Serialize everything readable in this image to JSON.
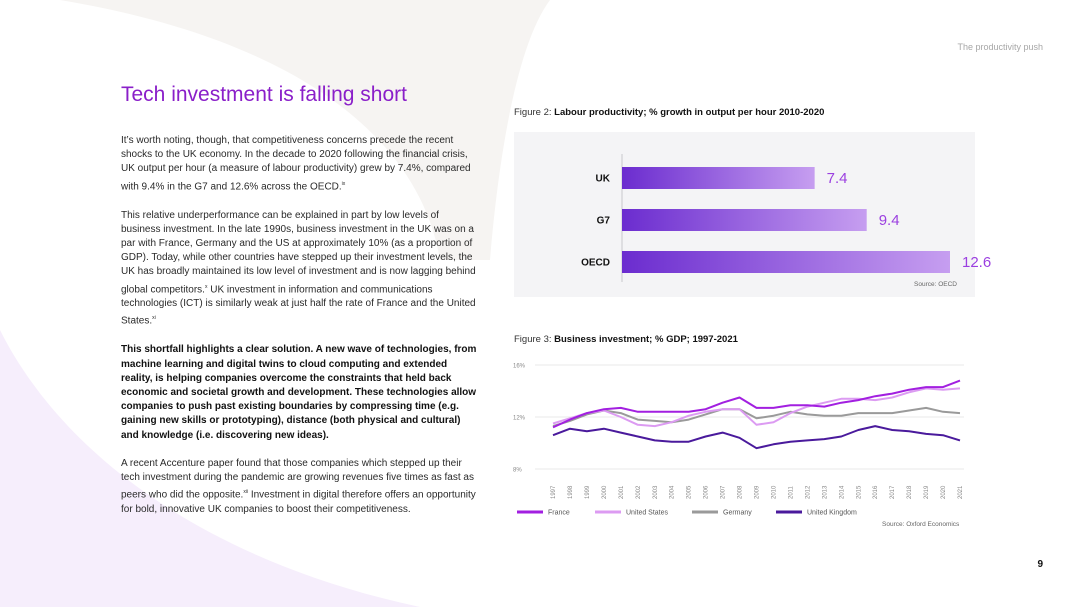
{
  "header": {
    "section": "The productivity push"
  },
  "title": "Tech investment is falling short",
  "paragraphs": {
    "p1": "It’s worth noting, though, that competitiveness concerns precede the recent shocks to the UK economy. In the decade to 2020 following the financial crisis, UK output per hour (a measure of labour productivity) grew by 7.4%, compared with 9.4% in the G7 and 12.6% across the OECD.",
    "p1_ref": "ix",
    "p2": "This relative underperformance can be explained in part by low levels of business investment. In the late 1990s, business investment in the UK was on a par with France, Germany and the US at approximately 10% (as a proportion of GDP). Today, while other countries have stepped up their investment levels, the UK has broadly maintained its low level of investment and is now lagging behind global competitors.",
    "p2_ref1": "x",
    "p2b": " UK investment in information and communications technologies (ICT) is similarly weak at just half the rate of France and the United States.",
    "p2_ref2": "xi",
    "p3": "This shortfall highlights a clear solution. A new wave of technologies, from machine learning and digital twins to cloud computing and extended reality, is helping companies overcome the constraints that held back economic and societal growth and development. These technologies allow companies to push past existing boundaries by compressing time (e.g. gaining new skills or prototyping), distance (both physical and cultural) and knowledge (i.e. discovering new ideas).",
    "p4": "A recent Accenture paper found that those companies which stepped up their tech investment during the pandemic are growing revenues five times as fast as peers who did the opposite.",
    "p4_ref": "xii",
    "p4b": " Investment in digital therefore offers an opportunity for bold, innovative UK companies to boost their competitiveness."
  },
  "figure2": {
    "caption_prefix": "Figure 2: ",
    "caption_bold": "Labour productivity; % growth in output per hour 2010-2020",
    "source": "Source: OECD"
  },
  "figure3": {
    "caption_prefix": "Figure 3: ",
    "caption_bold": "Business investment; % GDP; 1997-2021",
    "source": "Source: Oxford Economics"
  },
  "chart_data": [
    {
      "type": "bar",
      "orientation": "horizontal",
      "title": "Labour productivity; % growth in output per hour 2010-2020",
      "categories": [
        "UK",
        "G7",
        "OECD"
      ],
      "values": [
        7.4,
        9.4,
        12.6
      ],
      "value_labels": [
        "7.4",
        "9.4",
        "12.6"
      ],
      "xlim": [
        0,
        14
      ],
      "colors": {
        "bar_start": "#6b2ccf",
        "bar_end": "#c69ef0",
        "label": "#9b3fe0"
      }
    },
    {
      "type": "line",
      "title": "Business investment; % GDP; 1997-2021",
      "x": [
        "1997",
        "1998",
        "1999",
        "2000",
        "2001",
        "2002",
        "2003",
        "2004",
        "2005",
        "2006",
        "2007",
        "2008",
        "2009",
        "2010",
        "2011",
        "2012",
        "2013",
        "2014",
        "2015",
        "2016",
        "2017",
        "2018",
        "2019",
        "2020",
        "2021"
      ],
      "ylim": [
        8,
        16
      ],
      "yticks": [
        8,
        12,
        16
      ],
      "ytick_labels": [
        "8%",
        "12%",
        "16%"
      ],
      "series": [
        {
          "name": "France",
          "color": "#a21fe0",
          "values": [
            11.2,
            11.8,
            12.3,
            12.6,
            12.7,
            12.4,
            12.4,
            12.4,
            12.4,
            12.6,
            13.1,
            13.5,
            12.7,
            12.7,
            12.9,
            12.9,
            12.8,
            13.1,
            13.3,
            13.6,
            13.8,
            14.1,
            14.3,
            14.3,
            14.8
          ]
        },
        {
          "name": "United States",
          "color": "#dc9bf2",
          "values": [
            11.5,
            11.9,
            12.3,
            12.5,
            12.0,
            11.4,
            11.3,
            11.6,
            12.1,
            12.4,
            12.6,
            12.6,
            11.4,
            11.6,
            12.3,
            12.8,
            13.1,
            13.4,
            13.4,
            13.3,
            13.5,
            13.9,
            14.2,
            14.1,
            14.2
          ]
        },
        {
          "name": "Germany",
          "color": "#9a9a9a",
          "values": [
            11.3,
            11.7,
            12.2,
            12.5,
            12.3,
            11.8,
            11.7,
            11.6,
            11.8,
            12.2,
            12.6,
            12.6,
            11.9,
            12.1,
            12.4,
            12.2,
            12.1,
            12.1,
            12.3,
            12.3,
            12.3,
            12.5,
            12.7,
            12.4,
            12.3
          ]
        },
        {
          "name": "United Kingdom",
          "color": "#4a1a9c",
          "values": [
            10.6,
            11.1,
            10.9,
            11.1,
            10.8,
            10.5,
            10.2,
            10.1,
            10.1,
            10.5,
            10.8,
            10.4,
            9.6,
            9.9,
            10.1,
            10.2,
            10.3,
            10.5,
            11.0,
            11.3,
            11.0,
            10.9,
            10.7,
            10.6,
            10.2
          ]
        }
      ]
    }
  ],
  "page_number": "9"
}
